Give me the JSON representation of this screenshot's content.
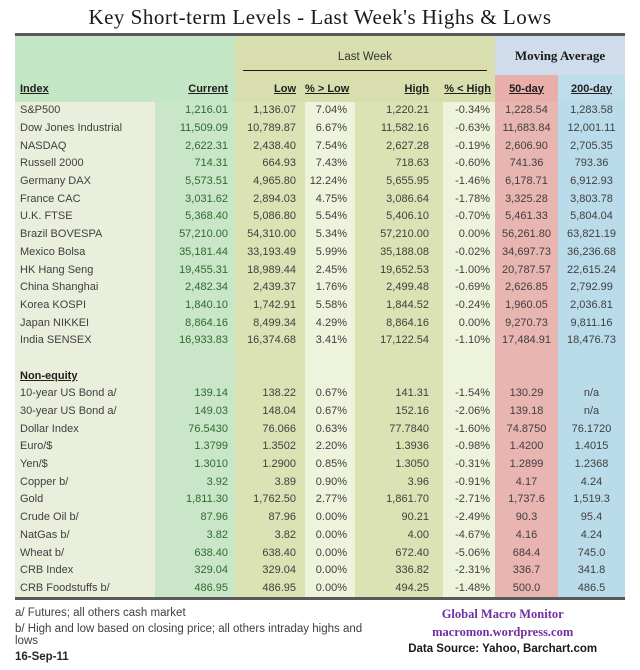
{
  "title": "Key Short-term Levels -  Last Week's Highs & Lows",
  "table": {
    "group_headers": {
      "last_week": "Last Week",
      "moving_average": "Moving Average"
    },
    "columns": [
      "Index",
      "Current",
      "Low",
      "% > Low",
      "High",
      "% < High",
      "50-day",
      "200-day"
    ],
    "rows": [
      {
        "type": "data",
        "cells": [
          "S&P500",
          "1,216.01",
          "1,136.07",
          "7.04%",
          "1,220.21",
          "-0.34%",
          "1,228.54",
          "1,283.58"
        ]
      },
      {
        "type": "data",
        "cells": [
          "Dow Jones Industrial",
          "11,509.09",
          "10,789.87",
          "6.67%",
          "11,582.16",
          "-0.63%",
          "11,683.84",
          "12,001.11"
        ]
      },
      {
        "type": "data",
        "cells": [
          "NASDAQ",
          "2,622.31",
          "2,438.40",
          "7.54%",
          "2,627.28",
          "-0.19%",
          "2,606.90",
          "2,705.35"
        ]
      },
      {
        "type": "data",
        "cells": [
          "Russell 2000",
          "714.31",
          "664.93",
          "7.43%",
          "718.63",
          "-0.60%",
          "741.36",
          "793.36"
        ]
      },
      {
        "type": "data",
        "cells": [
          "Germany DAX",
          "5,573.51",
          "4,965.80",
          "12.24%",
          "5,655.95",
          "-1.46%",
          "6,178.71",
          "6,912.93"
        ]
      },
      {
        "type": "data",
        "cells": [
          "France CAC",
          "3,031.62",
          "2,894.03",
          "4.75%",
          "3,086.64",
          "-1.78%",
          "3,325.28",
          "3,803.78"
        ]
      },
      {
        "type": "data",
        "cells": [
          "U.K. FTSE",
          "5,368.40",
          "5,086.80",
          "5.54%",
          "5,406.10",
          "-0.70%",
          "5,461.33",
          "5,804.04"
        ]
      },
      {
        "type": "data",
        "cells": [
          "Brazil BOVESPA",
          "57,210.00",
          "54,310.00",
          "5.34%",
          "57,210.00",
          "0.00%",
          "56,261.80",
          "63,821.19"
        ]
      },
      {
        "type": "data",
        "cells": [
          "Mexico Bolsa",
          "35,181.44",
          "33,193.49",
          "5.99%",
          "35,188.08",
          "-0.02%",
          "34,697.73",
          "36,236.68"
        ]
      },
      {
        "type": "data",
        "cells": [
          "HK  Hang Seng",
          "19,455.31",
          "18,989.44",
          "2.45%",
          "19,652.53",
          "-1.00%",
          "20,787.57",
          "22,615.24"
        ]
      },
      {
        "type": "data",
        "cells": [
          "China Shanghai",
          "2,482.34",
          "2,439.37",
          "1.76%",
          "2,499.48",
          "-0.69%",
          "2,626.85",
          "2,792.99"
        ]
      },
      {
        "type": "data",
        "cells": [
          "Korea KOSPI",
          "1,840.10",
          "1,742.91",
          "5.58%",
          "1,844.52",
          "-0.24%",
          "1,960.05",
          "2,036.81"
        ]
      },
      {
        "type": "data",
        "cells": [
          "Japan NIKKEI",
          "8,864.16",
          "8,499.34",
          "4.29%",
          "8,864.16",
          "0.00%",
          "9,270.73",
          "9,811.16"
        ]
      },
      {
        "type": "data",
        "cells": [
          "India SENSEX",
          "16,933.83",
          "16,374.68",
          "3.41%",
          "17,122.54",
          "-1.10%",
          "17,484.91",
          "18,476.73"
        ]
      },
      {
        "type": "blank"
      },
      {
        "type": "section",
        "label": "Non-equity"
      },
      {
        "type": "data",
        "cells": [
          "10-year US Bond  a/",
          "139.14",
          "138.22",
          "0.67%",
          "141.31",
          "-1.54%",
          "130.29",
          "n/a"
        ]
      },
      {
        "type": "data",
        "cells": [
          "30-year US Bond  a/",
          "149.03",
          "148.04",
          "0.67%",
          "152.16",
          "-2.06%",
          "139.18",
          "n/a"
        ]
      },
      {
        "type": "data",
        "cells": [
          "Dollar Index",
          "76.5430",
          "76.066",
          "0.63%",
          "77.7840",
          "-1.60%",
          "74.8750",
          "76.1720"
        ]
      },
      {
        "type": "data",
        "cells": [
          "Euro/$",
          "1.3799",
          "1.3502",
          "2.20%",
          "1.3936",
          "-0.98%",
          "1.4200",
          "1.4015"
        ]
      },
      {
        "type": "data",
        "cells": [
          "Yen/$",
          "1.3010",
          "1.2900",
          "0.85%",
          "1.3050",
          "-0.31%",
          "1.2899",
          "1.2368"
        ]
      },
      {
        "type": "data",
        "cells": [
          "Copper  b/",
          "3.92",
          "3.89",
          "0.90%",
          "3.96",
          "-0.91%",
          "4.17",
          "4.24"
        ]
      },
      {
        "type": "data",
        "cells": [
          "Gold",
          "1,811.30",
          "1,762.50",
          "2.77%",
          "1,861.70",
          "-2.71%",
          "1,737.6",
          "1,519.3"
        ]
      },
      {
        "type": "data",
        "cells": [
          "Crude Oil  b/",
          "87.96",
          "87.96",
          "0.00%",
          "90.21",
          "-2.49%",
          "90.3",
          "95.4"
        ]
      },
      {
        "type": "data",
        "cells": [
          "NatGas  b/",
          "3.82",
          "3.82",
          "0.00%",
          "4.00",
          "-4.67%",
          "4.16",
          "4.24"
        ]
      },
      {
        "type": "data",
        "cells": [
          "Wheat  b/",
          "638.40",
          "638.40",
          "0.00%",
          "672.40",
          "-5.06%",
          "684.4",
          "745.0"
        ]
      },
      {
        "type": "data",
        "cells": [
          "CRB Index",
          "329.04",
          "329.04",
          "0.00%",
          "336.82",
          "-2.31%",
          "336.7",
          "341.8"
        ]
      },
      {
        "type": "data",
        "cells": [
          "CRB Foodstuffs  b/",
          "486.95",
          "486.95",
          "0.00%",
          "494.25",
          "-1.48%",
          "500.0",
          "486.5"
        ]
      }
    ]
  },
  "footnotes": [
    "a/  Futures; all others cash market",
    "b/  High and low based on closing price;  all others intraday highs and lows"
  ],
  "date": "16-Sep-11",
  "branding": {
    "name": "Global Macro Monitor",
    "url": "macromon.wordpress.com",
    "source": "Data Source: Yahoo, Barchart.com"
  },
  "colors": {
    "index_col_bg": "#e9efda",
    "current_col_bg": "#c9e6c8",
    "low_high_col_bg": "#dbe2b4",
    "pct_col_bg": "#eef3dc",
    "ma50_col_bg": "#e8b5b0",
    "ma200_col_bg": "#badcea",
    "header_green_bg": "#c3e6c4",
    "last_week_bg": "#d8dead",
    "moving_average_bg": "#cedceb",
    "header_green_text": "#3a7d3a",
    "current_value_text": "#2f6b2f",
    "brand_purple": "#7030a0",
    "rule_gray": "#595959"
  }
}
